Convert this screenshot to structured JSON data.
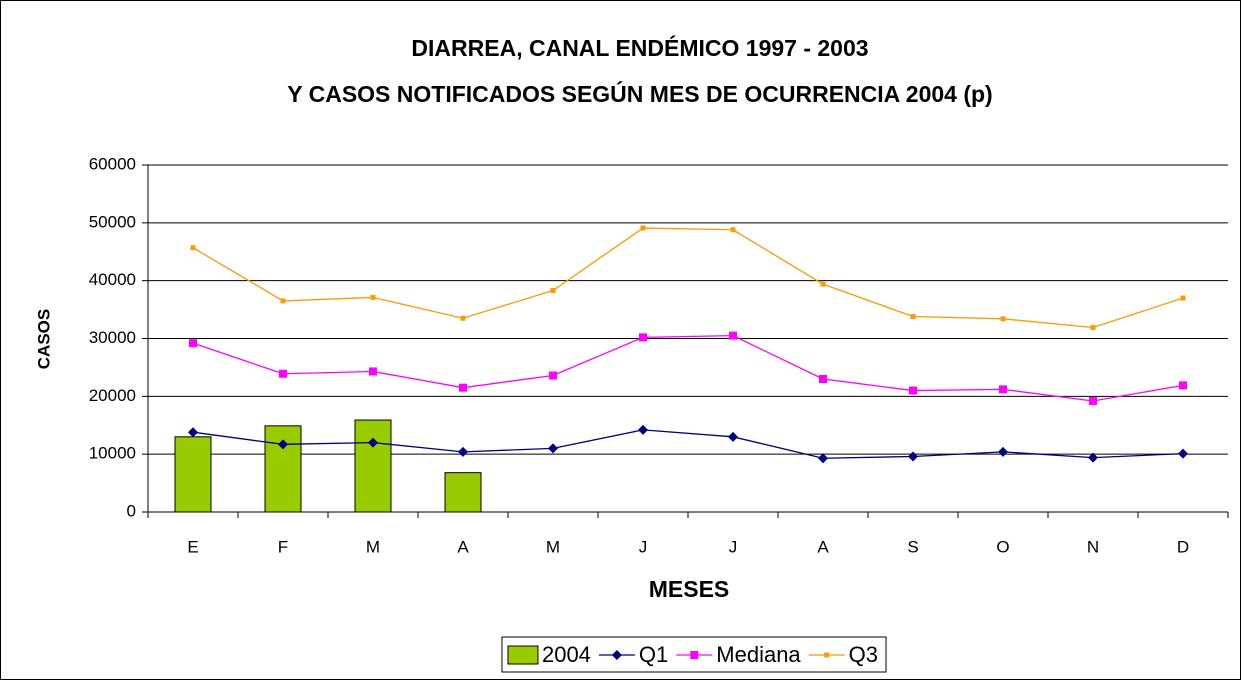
{
  "chart_data": {
    "type": "combo",
    "title": "DIARREA, CANAL ENDÉMICO 1997 - 2003",
    "subtitle": "Y CASOS NOTIFICADOS SEGÚN MES DE OCURRENCIA 2004 (p)",
    "x_label": "MESES",
    "y_label": "CASOS",
    "categories": [
      "E",
      "F",
      "M",
      "A",
      "M",
      "J",
      "J",
      "A",
      "S",
      "O",
      "N",
      "D"
    ],
    "series": [
      {
        "name": "2004",
        "type": "bar",
        "color": "#99cc00",
        "values": [
          13000,
          14900,
          15900,
          6800,
          null,
          null,
          null,
          null,
          null,
          null,
          null,
          null
        ]
      },
      {
        "name": "Q1",
        "type": "line",
        "marker": "diamond",
        "color": "#000080",
        "values": [
          13800,
          11700,
          12000,
          10400,
          11000,
          14200,
          13000,
          9300,
          9600,
          10400,
          9400,
          10100
        ]
      },
      {
        "name": "Mediana",
        "type": "line",
        "marker": "square",
        "color": "#ff00ff",
        "values": [
          29200,
          23900,
          24300,
          21500,
          23600,
          30200,
          30500,
          23000,
          21000,
          21200,
          19200,
          21900
        ]
      },
      {
        "name": "Q3",
        "type": "line",
        "marker": "small-square",
        "color": "#ff9900",
        "values": [
          45700,
          36500,
          37100,
          33500,
          38300,
          49100,
          48800,
          39400,
          33800,
          33400,
          31900,
          37000
        ]
      }
    ],
    "ylim": [
      0,
      60000
    ],
    "yticks": [
      0,
      10000,
      20000,
      30000,
      40000,
      50000,
      60000
    ],
    "grid": true,
    "legend": "bottom"
  }
}
